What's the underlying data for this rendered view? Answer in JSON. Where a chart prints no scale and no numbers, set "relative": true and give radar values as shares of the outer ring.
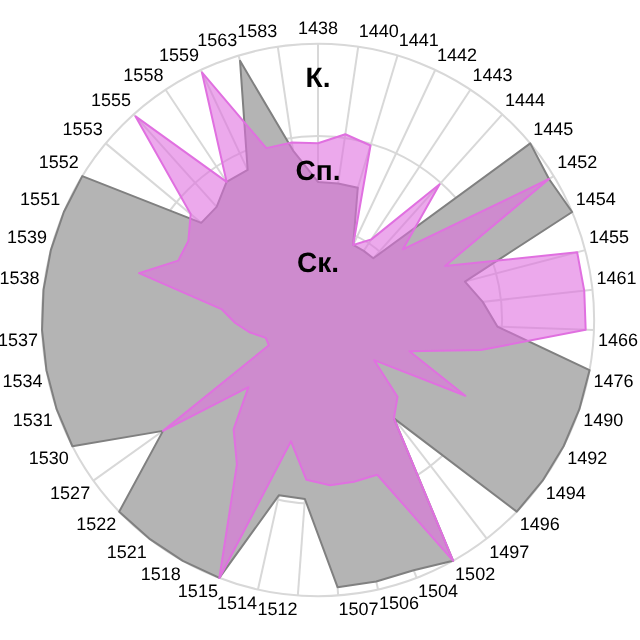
{
  "chart_data": {
    "type": "radar",
    "relative": true,
    "marker": "none",
    "legend": false,
    "grid": true,
    "categories": [
      "1438",
      "1440",
      "1441",
      "1442",
      "1443",
      "1444",
      "1445",
      "1452",
      "1454",
      "1455",
      "1461",
      "1466",
      "1476",
      "1490",
      "1492",
      "1494",
      "1496",
      "1497",
      "1502",
      "1504",
      "1506",
      "1507",
      "1512",
      "1514",
      "1515",
      "1518",
      "1521",
      "1522",
      "1527",
      "1530",
      "1531",
      "1534",
      "1537",
      "1538",
      "1539",
      "1551",
      "1552",
      "1553",
      "1555",
      "1558",
      "1559",
      "1563",
      "1583"
    ],
    "series": [
      {
        "color": "#b4b4b4",
        "values": [
          0.5,
          0.5,
          0.5,
          0.3,
          0.3,
          0.3,
          1.0,
          0.98,
          1.0,
          0.55,
          0.6,
          0.65,
          1.0,
          1.0,
          1.0,
          1.0,
          1.0,
          0.45,
          1.0,
          0.97,
          0.97,
          0.97,
          0.65,
          0.65,
          1.0,
          1.0,
          1.0,
          1.0,
          0.69,
          1.0,
          1.0,
          1.0,
          1.0,
          1.0,
          1.0,
          1.0,
          1.0,
          0.55,
          0.55,
          0.6,
          0.6,
          0.98,
          0.62
        ]
      },
      {
        "color": "#e070e0",
        "values": [
          0.64,
          0.68,
          0.66,
          0.3,
          0.35,
          0.66,
          0.4,
          0.98,
          0.5,
          0.97,
          0.97,
          0.97,
          0.6,
          0.35,
          0.6,
          0.25,
          0.4,
          0.45,
          1.0,
          0.6,
          0.6,
          0.6,
          0.58,
          0.45,
          1.0,
          0.6,
          0.5,
          0.35,
          0.69,
          0.2,
          0.2,
          0.25,
          0.3,
          0.35,
          0.67,
          0.55,
          0.55,
          0.6,
          0.99,
          0.6,
          0.99,
          0.65,
          0.65
        ]
      }
    ],
    "annotations": [
      "К.",
      "Сп.",
      "Ск."
    ]
  }
}
